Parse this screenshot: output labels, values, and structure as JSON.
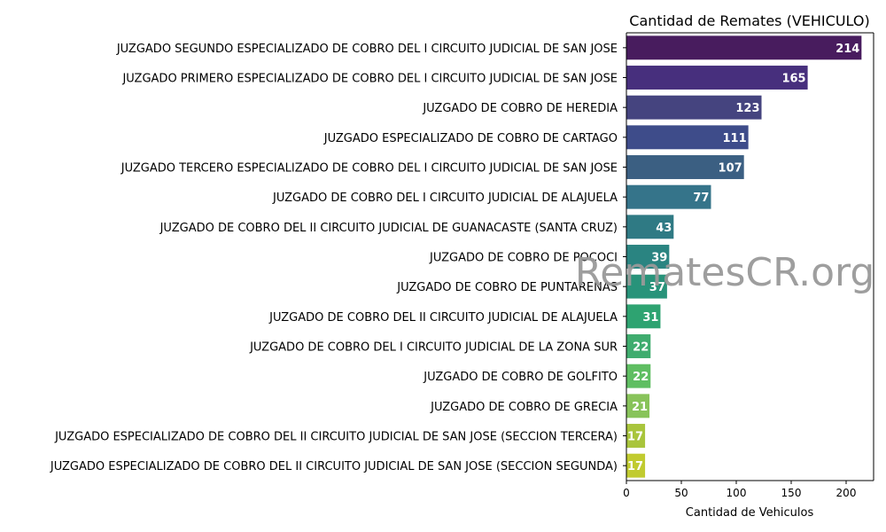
{
  "chart_data": {
    "type": "bar",
    "orientation": "horizontal",
    "title": "Cantidad de Remates (VEHICULO)",
    "xlabel": "Cantidad de Vehiculos",
    "ylabel": "",
    "xlim": [
      0,
      225
    ],
    "xticks": [
      0,
      50,
      100,
      150,
      200
    ],
    "grid": false,
    "watermark": "RematesCR.org",
    "categories": [
      "JUZGADO SEGUNDO ESPECIALIZADO DE COBRO DEL I CIRCUITO JUDICIAL DE SAN JOSE",
      "JUZGADO PRIMERO ESPECIALIZADO DE COBRO DEL I CIRCUITO JUDICIAL DE SAN JOSE",
      "JUZGADO DE COBRO DE HEREDIA",
      "JUZGADO ESPECIALIZADO DE COBRO DE CARTAGO",
      "JUZGADO TERCERO ESPECIALIZADO DE COBRO DEL I CIRCUITO JUDICIAL DE SAN JOSE",
      "JUZGADO DE COBRO DEL I CIRCUITO JUDICIAL DE ALAJUELA",
      "JUZGADO DE COBRO DEL II CIRCUITO JUDICIAL DE GUANACASTE (SANTA CRUZ)",
      "JUZGADO DE COBRO DE POCOCI",
      "JUZGADO DE COBRO DE PUNTARENAS",
      "JUZGADO DE COBRO DEL II CIRCUITO JUDICIAL DE ALAJUELA",
      "JUZGADO DE COBRO DEL I CIRCUITO JUDICIAL DE LA ZONA SUR",
      "JUZGADO DE COBRO DE GOLFITO",
      "JUZGADO DE COBRO DE GRECIA",
      "JUZGADO ESPECIALIZADO DE COBRO DEL II CIRCUITO JUDICIAL DE SAN JOSE (SECCION TERCERA)",
      "JUZGADO ESPECIALIZADO DE COBRO DEL II CIRCUITO JUDICIAL DE SAN JOSE (SECCION SEGUNDA)"
    ],
    "values": [
      214,
      165,
      123,
      111,
      107,
      77,
      43,
      39,
      37,
      31,
      22,
      22,
      21,
      17,
      17
    ],
    "colors": [
      "#481c5e",
      "#472f7d",
      "#45447f",
      "#3e4c8a",
      "#3b5f82",
      "#35748a",
      "#2f7a84",
      "#2a8481",
      "#28937a",
      "#2ea371",
      "#3fac6e",
      "#5fbe62",
      "#88c35a",
      "#a9c53c",
      "#c1cb30"
    ]
  }
}
